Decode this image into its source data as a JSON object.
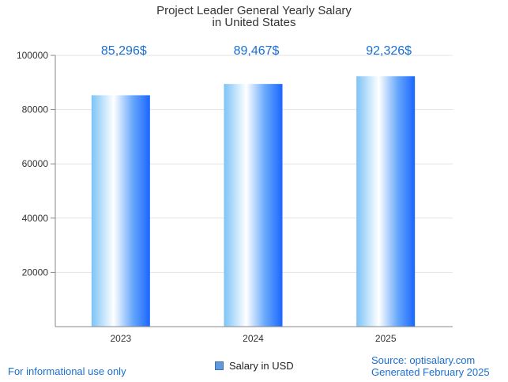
{
  "chart_data": {
    "type": "bar",
    "title": "Project Leader General Yearly Salary",
    "subtitle": "in United States",
    "categories": [
      "2023",
      "2024",
      "2025"
    ],
    "series": [
      {
        "name": "Salary in USD",
        "values": [
          85296,
          89467,
          92326
        ]
      }
    ],
    "data_labels": [
      "85,296$",
      "89,467$",
      "92,326$"
    ],
    "y_ticks": [
      "20000",
      "40000",
      "60000",
      "80000",
      "100000"
    ],
    "ylim": [
      0,
      100000
    ],
    "grid": true,
    "legend_position": "bottom-center",
    "colors": {
      "bar_edge": "#1a66ff",
      "bar_light": "#ffffff",
      "bar_left": "#7cc3f7",
      "label": "#1a6fd1",
      "grid": "#e3e3e3",
      "axis": "#888888"
    }
  },
  "footer": {
    "disclaimer": "For informational use only",
    "source": "Source: optisalary.com",
    "generated": "Generated February 2025"
  }
}
